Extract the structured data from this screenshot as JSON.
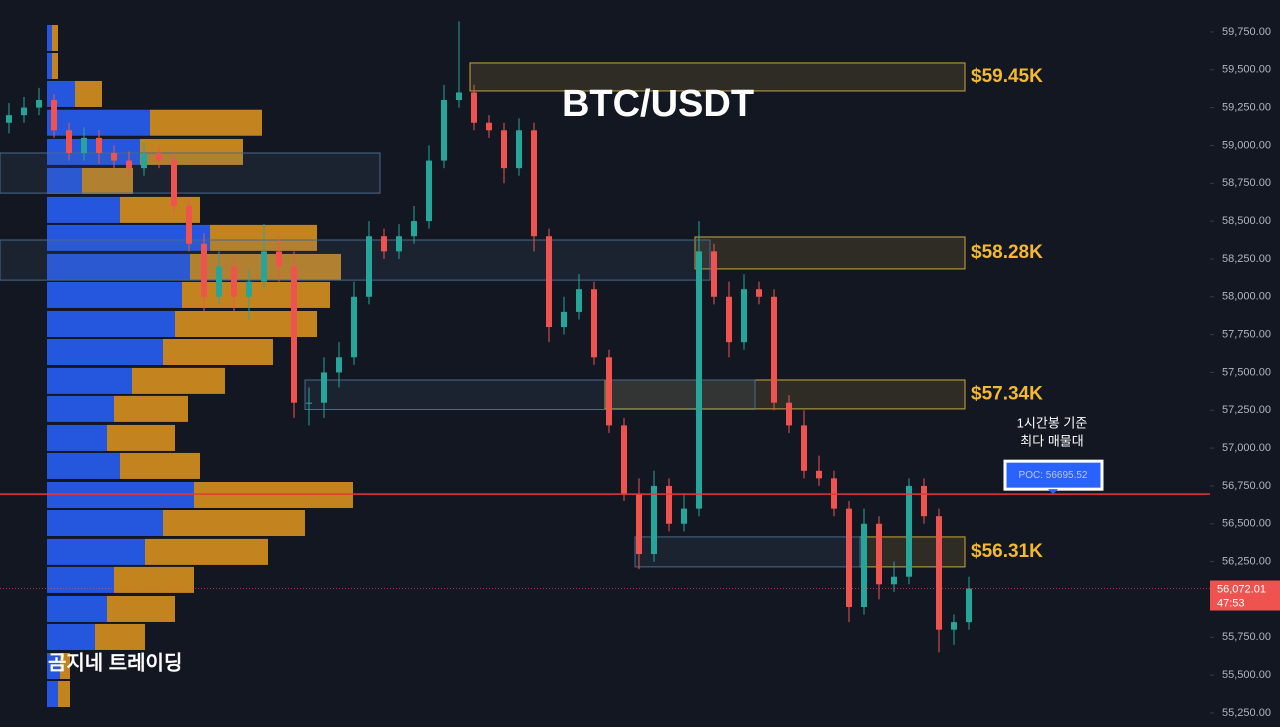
{
  "chart_data": {
    "type": "candlestick",
    "title": "BTC/USDT",
    "watermark": "곰지네 트레이딩",
    "annotation": [
      "1시간봉 기준",
      "최다 매물대"
    ],
    "up_color": "#26a69a",
    "down_color": "#ef5350",
    "ylim": [
      55157,
      59961
    ],
    "yticks": [
      {
        "value": 55250,
        "label": "55,250.00"
      },
      {
        "value": 55500,
        "label": "55,500.00"
      },
      {
        "value": 55750,
        "label": "55,750.00"
      },
      {
        "value": 56000,
        "label": "56,000.00"
      },
      {
        "value": 56250,
        "label": "56,250.00"
      },
      {
        "value": 56500,
        "label": "56,500.00"
      },
      {
        "value": 56750,
        "label": "56,750.00"
      },
      {
        "value": 57000,
        "label": "57,000.00"
      },
      {
        "value": 57250,
        "label": "57,250.00"
      },
      {
        "value": 57500,
        "label": "57,500.00"
      },
      {
        "value": 57750,
        "label": "57,750.00"
      },
      {
        "value": 58000,
        "label": "58,000.00"
      },
      {
        "value": 58250,
        "label": "58,250.00"
      },
      {
        "value": 58500,
        "label": "58,500.00"
      },
      {
        "value": 58750,
        "label": "58,750.00"
      },
      {
        "value": 59000,
        "label": "59,000.00"
      },
      {
        "value": 59250,
        "label": "59,250.00"
      },
      {
        "value": 59500,
        "label": "59,500.00"
      },
      {
        "value": 59750,
        "label": "59,750.00"
      }
    ],
    "open": [
      59150,
      59200,
      59250,
      59300,
      59100,
      58950,
      59050,
      58950,
      58900,
      58850,
      58950,
      58900,
      58600,
      58350,
      58000,
      58200,
      58000,
      58100,
      58300,
      58200,
      57300,
      57300,
      57500,
      57600,
      58000,
      58400,
      58300,
      58400,
      58500,
      58900,
      59300,
      59350,
      59150,
      59100,
      58850,
      59100,
      58400,
      57800,
      57900,
      58050,
      57600,
      57150,
      56700,
      56300,
      56750,
      56500,
      56600,
      58300,
      58000,
      57700,
      58050,
      58000,
      57300,
      57150,
      56850,
      56800,
      56600,
      55950,
      56500,
      56100,
      56150,
      56750,
      56550,
      55800,
      55850
    ],
    "high": [
      59280,
      59320,
      59380,
      59340,
      59150,
      59120,
      59100,
      59000,
      58960,
      59020,
      59000,
      58950,
      58650,
      58420,
      58300,
      58260,
      58180,
      58480,
      58400,
      58300,
      57400,
      57600,
      57700,
      58100,
      58500,
      58450,
      58480,
      58600,
      59000,
      59400,
      59820,
      59400,
      59200,
      59150,
      59180,
      59150,
      58450,
      58000,
      58150,
      58100,
      57650,
      57200,
      56800,
      56850,
      56800,
      56700,
      58500,
      58350,
      58100,
      58150,
      58100,
      58050,
      57350,
      57250,
      56950,
      56850,
      56650,
      56600,
      56550,
      56250,
      56800,
      56800,
      56600,
      55900,
      56150
    ],
    "low": [
      59080,
      59150,
      59200,
      59050,
      58900,
      58900,
      58880,
      58850,
      58800,
      58800,
      58850,
      58550,
      58300,
      57900,
      57950,
      57900,
      57850,
      58050,
      58100,
      57200,
      57150,
      57200,
      57400,
      57550,
      57950,
      58250,
      58250,
      58350,
      58450,
      58850,
      59250,
      59100,
      59050,
      58750,
      58800,
      58300,
      57700,
      57750,
      57850,
      57550,
      57100,
      56650,
      56200,
      56250,
      56450,
      56450,
      56550,
      57950,
      57600,
      57650,
      57950,
      57250,
      57100,
      56800,
      56750,
      56550,
      55850,
      55900,
      56000,
      56050,
      56100,
      56500,
      55650,
      55700,
      55800
    ],
    "close": [
      59200,
      59250,
      59300,
      59100,
      58950,
      59050,
      58950,
      58900,
      58850,
      58950,
      58900,
      58600,
      58350,
      58000,
      58200,
      58000,
      58100,
      58300,
      58200,
      57300,
      57300,
      57500,
      57600,
      58000,
      58400,
      58300,
      58400,
      58500,
      58900,
      59300,
      59350,
      59150,
      59100,
      58850,
      59100,
      58400,
      57800,
      57900,
      58050,
      57600,
      57150,
      56700,
      56300,
      56750,
      56500,
      56600,
      58300,
      58000,
      57700,
      58050,
      58000,
      57300,
      57150,
      56850,
      56800,
      56600,
      55950,
      56500,
      56100,
      56150,
      56750,
      56550,
      55800,
      55850,
      56072.01
    ],
    "last_price": {
      "value": 56072.01,
      "label": "56,072.01"
    },
    "countdown": "47:53",
    "poc": {
      "value": 56695.52,
      "label": "POC: 56695.52",
      "color": "#e53935"
    },
    "zones": [
      {
        "low": 59360,
        "high": 59545,
        "start": 31,
        "end": 64,
        "label": "$59.45K",
        "color": "#c9a93a"
      },
      {
        "low": 58184,
        "high": 58395,
        "start": 46,
        "end": 64,
        "label": "$58.28K",
        "color": "#c9a93a"
      },
      {
        "low": 57259,
        "high": 57450,
        "start": 40,
        "end": 64,
        "label": "$57.34K",
        "color": "#c9a93a"
      },
      {
        "low": 56215,
        "high": 56413,
        "start": 57,
        "end": 64,
        "label": "$56.31K",
        "color": "#c9a93a"
      },
      {
        "low": 58685,
        "high": 58950,
        "start": 0,
        "end": 25,
        "color": "#4a6a8a"
      },
      {
        "low": 58110,
        "high": 58375,
        "start": 0,
        "end": 47,
        "color": "#4a6a8a"
      },
      {
        "low": 57255,
        "high": 57450,
        "start": 20,
        "end": 50,
        "color": "#4a6a8a"
      },
      {
        "low": 56215,
        "high": 56413,
        "start": 42,
        "end": 57,
        "color": "#4a6a8a"
      }
    ],
    "profile": {
      "xlim": [
        0,
        320
      ],
      "levels": [
        59710,
        59525,
        59340,
        59150,
        58957,
        58765,
        58574,
        58389,
        58197,
        58012,
        57820,
        57635,
        57444,
        57259,
        57067,
        56882,
        56690,
        56505,
        56314,
        56129,
        55937,
        55752,
        55560,
        55375
      ],
      "buy": [
        5,
        5,
        28,
        103,
        93,
        35,
        73,
        163,
        143,
        135,
        128,
        116,
        85,
        67,
        60,
        73,
        147,
        116,
        98,
        67,
        60,
        48,
        13,
        11
      ],
      "sell": [
        6,
        6,
        27,
        112,
        103,
        51,
        80,
        107,
        151,
        148,
        142,
        110,
        93,
        74,
        68,
        80,
        159,
        142,
        123,
        80,
        68,
        50,
        10,
        12
      ],
      "buy_color": "#2962ff",
      "sell_color": "#f0a020"
    }
  }
}
